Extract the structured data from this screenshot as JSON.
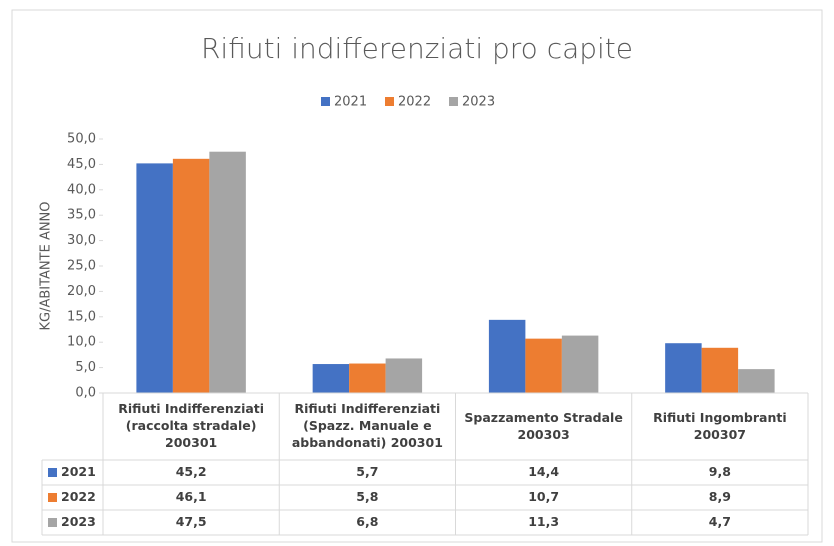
{
  "chart_data": {
    "type": "bar",
    "title": "Rifiuti indifferenziati pro capite",
    "y_label": "KG/ABITANTE ANNO",
    "categories": [
      "Rifiuti Indifferenziati (raccolta stradale) 200301",
      "Rifiuti Indifferenziati (Spazz. Manuale e abbandonati) 200301",
      "Spazzamento Stradale 200303",
      "Rifiuti Ingombranti 200307"
    ],
    "series": [
      {
        "name": "2021",
        "color": "#4472c4",
        "values": [
          45.2,
          5.7,
          14.4,
          9.8
        ],
        "value_labels": [
          "45,2",
          "5,7",
          "14,4",
          "9,8"
        ]
      },
      {
        "name": "2022",
        "color": "#ed7d31",
        "values": [
          46.1,
          5.8,
          10.7,
          8.9
        ],
        "value_labels": [
          "46,1",
          "5,8",
          "10,7",
          "8,9"
        ]
      },
      {
        "name": "2023",
        "color": "#a5a5a5",
        "values": [
          47.5,
          6.8,
          11.3,
          4.7
        ],
        "value_labels": [
          "47,5",
          "6,8",
          "11,3",
          "4,7"
        ]
      }
    ],
    "ylim": [
      0,
      50
    ],
    "yticks": [
      {
        "value": 0,
        "label": "0,0"
      },
      {
        "value": 5,
        "label": "5,0"
      },
      {
        "value": 10,
        "label": "10,0"
      },
      {
        "value": 15,
        "label": "15,0"
      },
      {
        "value": 20,
        "label": "20,0"
      },
      {
        "value": 25,
        "label": "25,0"
      },
      {
        "value": 30,
        "label": "30,0"
      },
      {
        "value": 35,
        "label": "35,0"
      },
      {
        "value": 40,
        "label": "40,0"
      },
      {
        "value": 45,
        "label": "45,0"
      },
      {
        "value": 50,
        "label": "50,0"
      }
    ],
    "grid": false,
    "legend": "top",
    "data_table": true
  }
}
